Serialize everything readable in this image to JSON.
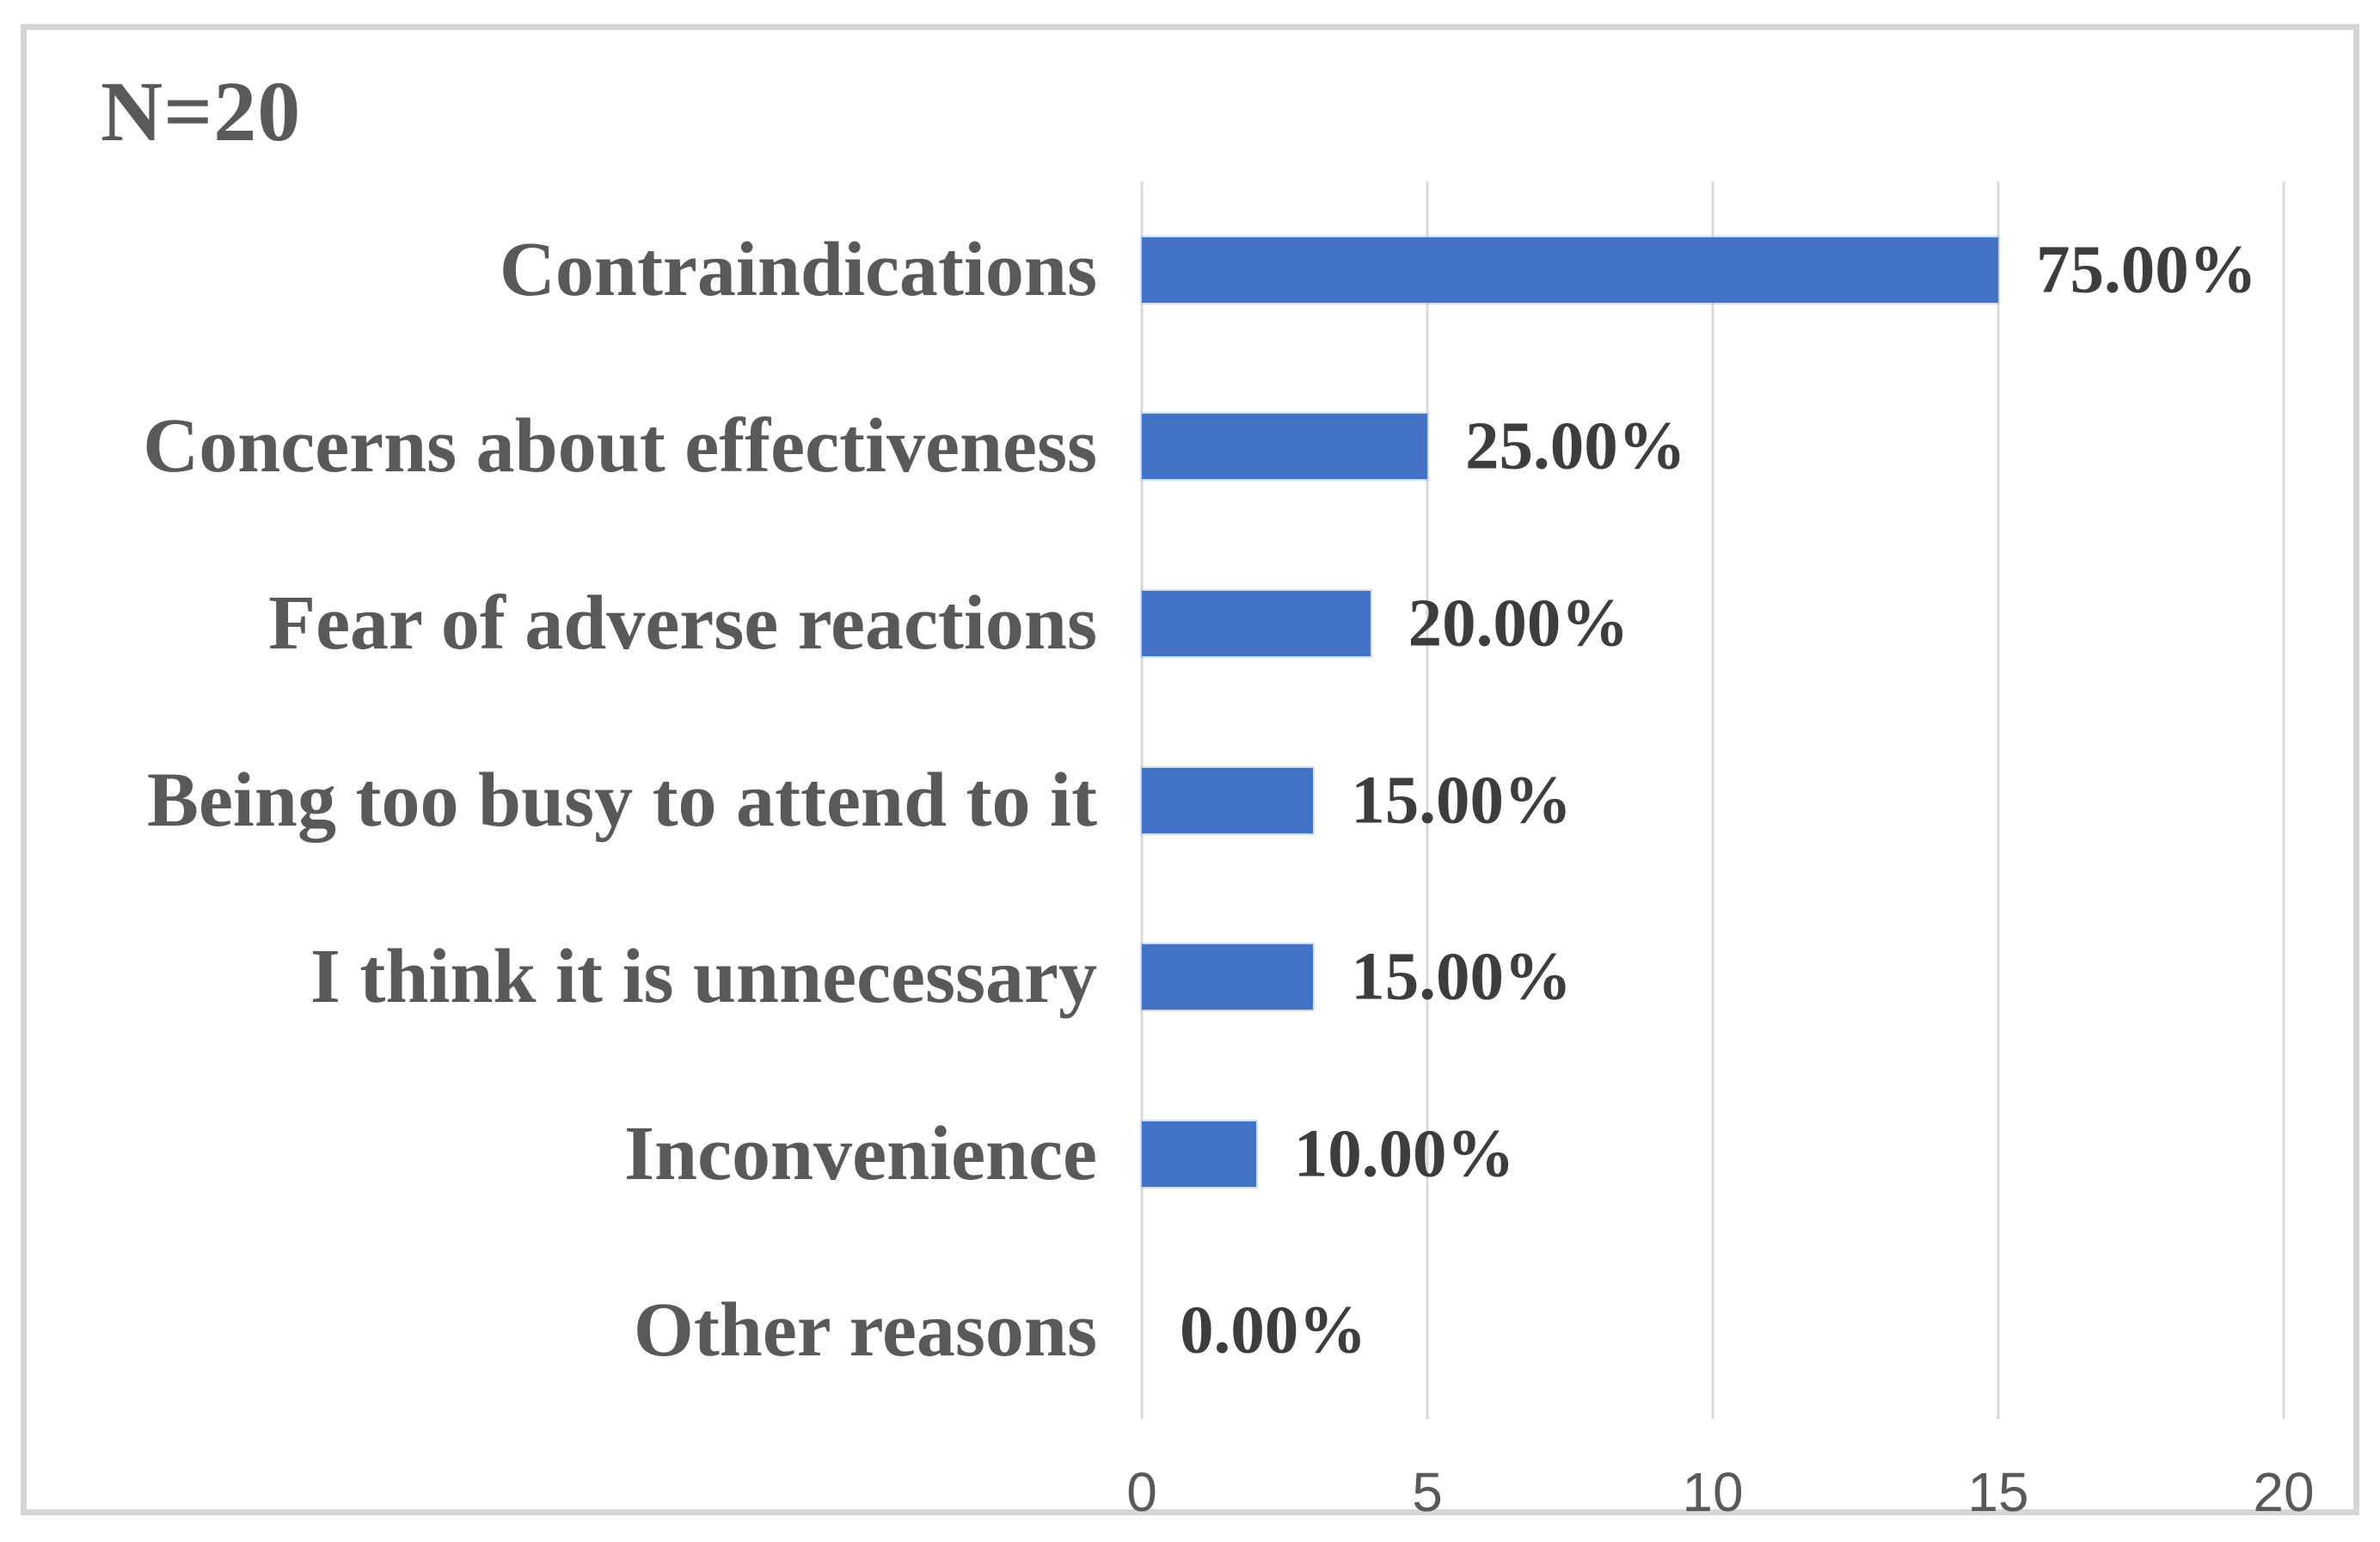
{
  "figure": {
    "background": "#ffffff",
    "border_color": "#d5d5d5"
  },
  "chart_data": {
    "type": "bar",
    "orientation": "horizontal",
    "title": "N=20",
    "categories": [
      "Contraindications",
      "Concerns about effectiveness",
      "Fear of adverse reactions",
      "Being too busy to attend to it",
      "I think it is unnecessary",
      "Inconvenience",
      "Other reasons"
    ],
    "values": [
      15,
      5,
      4,
      3,
      3,
      2,
      0
    ],
    "data_labels": [
      "75.00%",
      "25.00%",
      "20.00%",
      "15.00%",
      "15.00%",
      "10.00%",
      "0.00%"
    ],
    "x_ticks": [
      "0",
      "5",
      "10",
      "15",
      "20"
    ],
    "xlim": [
      0,
      20
    ],
    "grid": true,
    "legend": "none",
    "xlabel": "",
    "ylabel": "",
    "colors": {
      "bar": "#4472c4",
      "category_label": "#595959",
      "data_label": "#3d3d3d",
      "tick_label": "#595959",
      "gridline": "#d9d9d9",
      "title": "#595959"
    }
  }
}
